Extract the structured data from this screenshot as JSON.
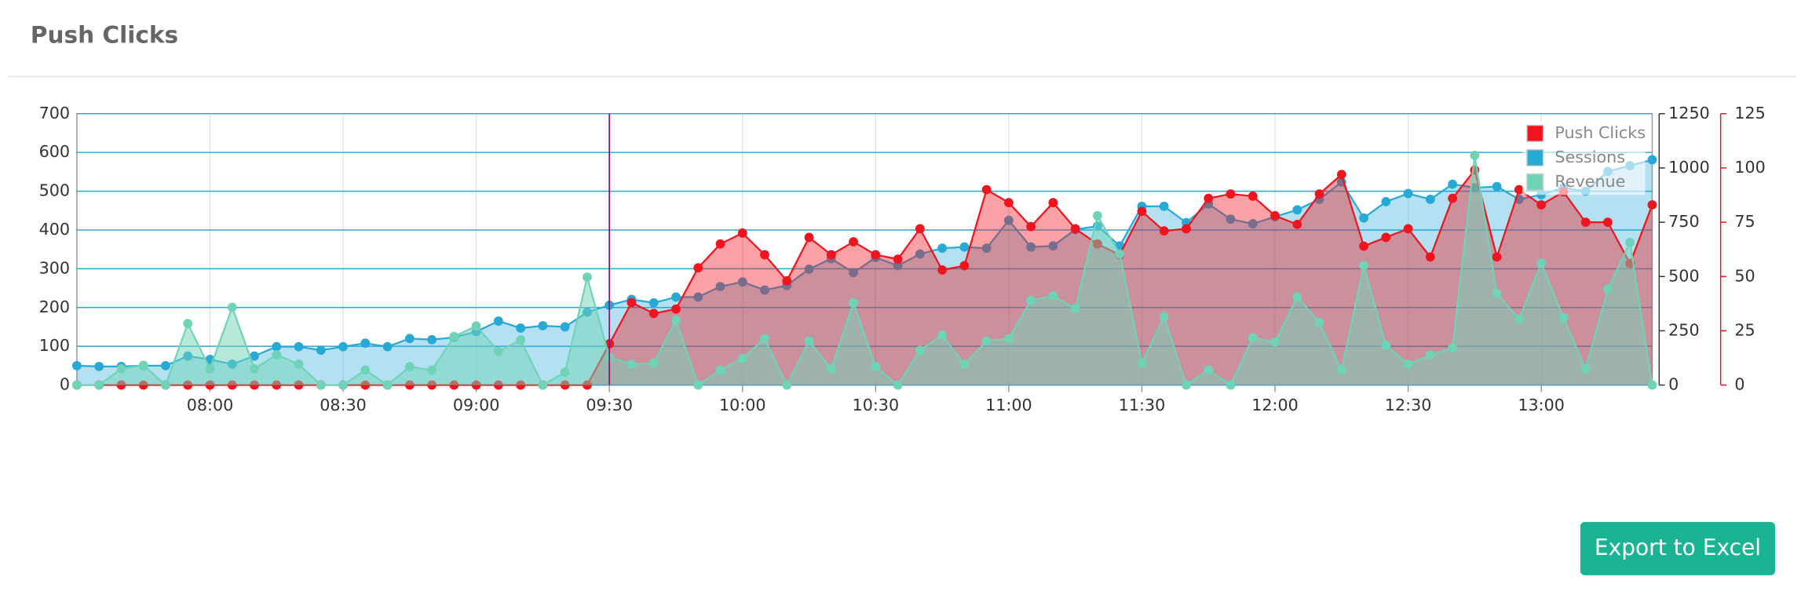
{
  "chart_data": {
    "type": "area",
    "title": "Push Clicks",
    "categories": [
      null,
      null,
      null,
      null,
      null,
      null,
      "08:00",
      null,
      null,
      null,
      null,
      null,
      "08:30",
      null,
      null,
      null,
      null,
      null,
      "09:00",
      null,
      null,
      null,
      null,
      null,
      "09:30",
      null,
      null,
      null,
      null,
      null,
      "10:00",
      null,
      null,
      null,
      null,
      null,
      "10:30",
      null,
      null,
      null,
      null,
      null,
      "11:00",
      null,
      null,
      null,
      null,
      null,
      "11:30",
      null,
      null,
      null,
      null,
      null,
      "12:00",
      null,
      null,
      null,
      null,
      null,
      "12:30",
      null,
      null,
      null,
      null,
      null,
      "13:00",
      null,
      null,
      null,
      null,
      null
    ],
    "ylim": [
      0,
      700
    ],
    "yticks": [
      0,
      100,
      200,
      300,
      400,
      500,
      600,
      700
    ],
    "y2lim": [
      0,
      1250
    ],
    "y2ticks": [
      0,
      250,
      500,
      750,
      1000,
      1250
    ],
    "y3lim": [
      0,
      125
    ],
    "y3ticks": [
      0,
      25,
      50,
      75,
      100,
      125
    ],
    "grid": true,
    "legend": "top-right",
    "series": [
      {
        "name": "Push Clicks",
        "color": "#f0141e",
        "axis": "y3",
        "values": [
          0,
          0,
          0,
          0,
          0,
          0,
          0,
          0,
          0,
          0,
          0,
          0,
          0,
          0,
          0,
          0,
          0,
          0,
          0,
          0,
          0,
          0,
          0,
          0,
          19,
          38,
          33,
          35,
          54,
          65,
          70,
          60,
          48,
          68,
          60,
          66,
          60,
          58,
          72,
          53,
          55,
          90,
          84,
          73,
          84,
          72,
          65,
          60,
          80,
          71,
          72,
          86,
          88,
          87,
          78,
          74,
          88,
          97,
          64,
          68,
          72,
          59,
          86,
          99,
          59,
          90,
          83,
          89,
          75,
          75,
          56,
          83
        ]
      },
      {
        "name": "Sessions",
        "color": "#27a9d6",
        "axis": "y",
        "values": [
          50,
          48,
          48,
          50,
          50,
          75,
          66,
          54,
          75,
          99,
          99,
          90,
          99,
          108,
          99,
          120,
          117,
          123,
          138,
          165,
          147,
          153,
          150,
          188,
          206,
          221,
          212,
          227,
          227,
          254,
          266,
          245,
          257,
          299,
          326,
          290,
          329,
          308,
          338,
          353,
          356,
          353,
          425,
          356,
          359,
          401,
          410,
          359,
          461,
          461,
          419,
          467,
          428,
          416,
          434,
          452,
          479,
          524,
          431,
          473,
          494,
          479,
          518,
          509,
          512,
          479,
          491,
          509,
          500,
          551,
          566,
          581
        ]
      },
      {
        "name": "Revenue",
        "color": "#6fd3b8",
        "axis": "y2",
        "values": [
          0,
          0,
          75,
          91,
          0,
          283,
          75,
          358,
          75,
          139,
          96,
          0,
          0,
          69,
          0,
          85,
          69,
          224,
          272,
          155,
          208,
          0,
          59,
          497,
          128,
          96,
          101,
          299,
          0,
          69,
          123,
          214,
          0,
          203,
          75,
          379,
          85,
          0,
          160,
          230,
          96,
          203,
          214,
          390,
          411,
          353,
          780,
          604,
          101,
          315,
          0,
          69,
          0,
          219,
          198,
          406,
          288,
          69,
          550,
          182,
          96,
          139,
          171,
          1058,
          422,
          304,
          561,
          310,
          75,
          443,
          657,
          0
        ]
      }
    ]
  },
  "button": "Export to Excel"
}
